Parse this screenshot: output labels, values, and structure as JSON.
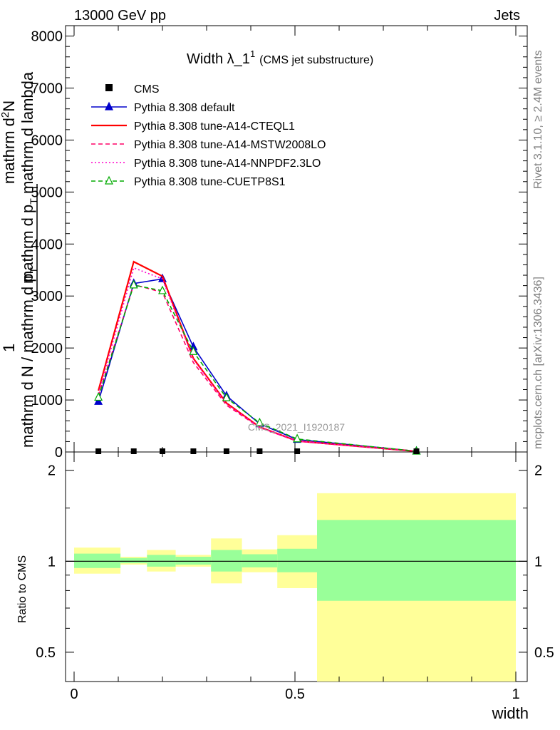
{
  "header": {
    "left": "13000 GeV pp",
    "right": "Jets"
  },
  "side_text": {
    "rivet": "Rivet 3.1.10, ≥ 2.4M events",
    "source": "mcplots.cern.ch [arXiv:1306.3436]"
  },
  "chart_data": [
    {
      "type": "line",
      "title": "Width λ_1",
      "title_sup": "1",
      "subtitle": "(CMS jet substructure)",
      "ylabel": "1 / (mathrm d N / mathrm d p_T) · mathrm d^2N / (mathrm d p_T mathrm d lambda)",
      "ylabel_parts": {
        "one": "1",
        "num": "mathrm d",
        "num_sup": "2",
        "num_tail": "N",
        "den_top_a": "mathrm d p",
        "den_top_b": "T",
        "den_top_c": " mathrm d lambda",
        "den_bot_a": "mathrm d N / mathrm d p",
        "den_bot_b": "T"
      },
      "watermark": "CMS_2021_I1920187",
      "xlim": [
        0,
        1
      ],
      "ylim": [
        0,
        8200
      ],
      "yticks": [
        0,
        1000,
        2000,
        3000,
        4000,
        5000,
        6000,
        7000,
        8000
      ],
      "ytick_labels": [
        "0",
        "1000",
        "2000",
        "3000",
        "4000",
        "5000",
        "6000",
        "7000",
        "8000"
      ],
      "legend_position": "top-left",
      "data_series": {
        "name": "CMS",
        "x": [
          0.055,
          0.135,
          0.2,
          0.27,
          0.345,
          0.42,
          0.505,
          0.775
        ],
        "y": [
          0,
          0,
          0,
          0,
          0,
          0,
          0,
          0
        ]
      },
      "series": [
        {
          "name": "Pythia 8.308 default",
          "color": "#0000cc",
          "style": "solid",
          "marker": "triangle-filled",
          "x": [
            0.055,
            0.135,
            0.2,
            0.27,
            0.345,
            0.42,
            0.505,
            0.775
          ],
          "y": [
            970,
            3240,
            3330,
            2020,
            1080,
            540,
            240,
            15
          ]
        },
        {
          "name": "Pythia 8.308 tune-A14-CTEQL1",
          "color": "#ff0000",
          "style": "solid",
          "marker": "none",
          "x": [
            0.055,
            0.135,
            0.2,
            0.27,
            0.345,
            0.42,
            0.505,
            0.775
          ],
          "y": [
            1180,
            3660,
            3380,
            1800,
            940,
            480,
            210,
            12
          ]
        },
        {
          "name": "Pythia 8.308 tune-A14-MSTW2008LO",
          "color": "#ff0066",
          "style": "dashed",
          "marker": "none",
          "x": [
            0.055,
            0.135,
            0.2,
            0.27,
            0.345,
            0.42,
            0.505,
            0.775
          ],
          "y": [
            1080,
            3220,
            3070,
            1720,
            900,
            470,
            205,
            12
          ]
        },
        {
          "name": "Pythia 8.308 tune-A14-NNPDF2.3LO",
          "color": "#ff00cc",
          "style": "dotted",
          "marker": "none",
          "x": [
            0.055,
            0.135,
            0.2,
            0.27,
            0.345,
            0.42,
            0.505,
            0.775
          ],
          "y": [
            1120,
            3540,
            3330,
            1780,
            930,
            475,
            210,
            12
          ]
        },
        {
          "name": "Pythia 8.308 tune-CUETP8S1",
          "color": "#00aa00",
          "style": "dashed",
          "marker": "triangle-open",
          "x": [
            0.055,
            0.135,
            0.2,
            0.27,
            0.345,
            0.42,
            0.505,
            0.775
          ],
          "y": [
            1050,
            3210,
            3100,
            1930,
            1040,
            560,
            250,
            14
          ]
        }
      ]
    },
    {
      "type": "area",
      "ylabel": "Ratio to CMS",
      "xlabel": "width",
      "xlim": [
        0,
        1
      ],
      "ylim": [
        0.4,
        2.3
      ],
      "log_y": true,
      "yticks": [
        0.5,
        1,
        2
      ],
      "ytick_labels": [
        "0.5",
        "1",
        "2"
      ],
      "xticks": [
        0,
        0.5,
        1
      ],
      "xtick_labels": [
        "0",
        "0.5",
        "1"
      ],
      "reference_line": 1,
      "bins": [
        {
          "x0": 0.0,
          "x1": 0.105,
          "inner": [
            0.95,
            1.06
          ],
          "outer": [
            0.91,
            1.11
          ]
        },
        {
          "x0": 0.105,
          "x1": 0.165,
          "inner": [
            0.985,
            1.025
          ],
          "outer": [
            0.975,
            1.035
          ]
        },
        {
          "x0": 0.165,
          "x1": 0.23,
          "inner": [
            0.96,
            1.05
          ],
          "outer": [
            0.925,
            1.09
          ]
        },
        {
          "x0": 0.23,
          "x1": 0.31,
          "inner": [
            0.975,
            1.035
          ],
          "outer": [
            0.96,
            1.05
          ]
        },
        {
          "x0": 0.31,
          "x1": 0.38,
          "inner": [
            0.925,
            1.09
          ],
          "outer": [
            0.845,
            1.19
          ]
        },
        {
          "x0": 0.38,
          "x1": 0.46,
          "inner": [
            0.955,
            1.055
          ],
          "outer": [
            0.92,
            1.095
          ]
        },
        {
          "x0": 0.46,
          "x1": 0.55,
          "inner": [
            0.92,
            1.1
          ],
          "outer": [
            0.815,
            1.22
          ]
        },
        {
          "x0": 0.55,
          "x1": 1.0,
          "inner": [
            0.74,
            1.37
          ],
          "outer": [
            0.4,
            1.68
          ]
        }
      ],
      "band_colors": {
        "inner": "#99ff99",
        "outer": "#ffff99"
      }
    }
  ]
}
